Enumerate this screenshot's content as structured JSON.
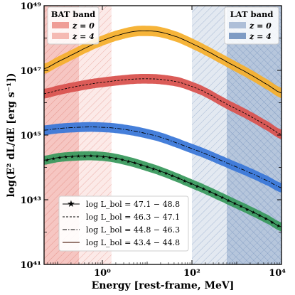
{
  "chart_data": {
    "type": "area",
    "xlabel": "Energy [rest-frame, MeV]",
    "ylabel": "log(E² dL/dE [erg s⁻¹])",
    "xscale": "log",
    "yscale": "log",
    "xlim": [
      0.05,
      10000
    ],
    "ylim": [
      1e+41,
      1e+49
    ],
    "x_ticks": [
      {
        "value": 1,
        "label": "10⁰"
      },
      {
        "value": 100,
        "label": "10²"
      },
      {
        "value": 10000,
        "label": "10⁴"
      }
    ],
    "y_ticks": [
      {
        "value": 1e+41,
        "label": "10⁴¹"
      },
      {
        "value": 1e+43,
        "label": "10⁴³"
      },
      {
        "value": 1e+45,
        "label": "10⁴⁵"
      },
      {
        "value": 1e+47,
        "label": "10⁴⁷"
      },
      {
        "value": 1e+49,
        "label": "10⁴⁹"
      }
    ],
    "x_samples": [
      0.05,
      0.1,
      0.2,
      0.5,
      1,
      2,
      5,
      10,
      20,
      50,
      100,
      200,
      500,
      1000,
      2000,
      5000,
      10000
    ],
    "series": [
      {
        "name": "log L_bol = 47.1 − 48.8",
        "color": "#f5b02e",
        "line_style": "solid",
        "y_log": [
          47.05,
          47.26,
          47.47,
          47.74,
          47.92,
          48.07,
          48.2,
          48.22,
          48.18,
          48.02,
          47.83,
          47.62,
          47.33,
          47.1,
          46.87,
          46.55,
          46.3
        ],
        "band_log": 0.16
      },
      {
        "name": "log L_bol = 46.3 − 47.1",
        "color": "#d9534f",
        "line_style": "dashed",
        "y_log": [
          46.28,
          46.38,
          46.47,
          46.57,
          46.63,
          46.68,
          46.73,
          46.74,
          46.72,
          46.64,
          46.5,
          46.32,
          46.02,
          45.8,
          45.58,
          45.27,
          45.02
        ],
        "band_log": 0.15
      },
      {
        "name": "log L_bol = 44.8 − 46.3",
        "color": "#3b78d8",
        "line_style": "dashdot",
        "y_log": [
          45.15,
          45.2,
          45.23,
          45.25,
          45.24,
          45.21,
          45.13,
          45.04,
          44.93,
          44.74,
          44.58,
          44.42,
          44.19,
          44.01,
          43.83,
          43.58,
          43.37
        ],
        "band_log": 0.15
      },
      {
        "name": "log L_bol = 43.4 − 44.8",
        "color": "#3a9a5e",
        "line_style": "solid",
        "markers": "star",
        "y_log": [
          44.22,
          44.3,
          44.34,
          44.36,
          44.34,
          44.28,
          44.15,
          44.02,
          43.88,
          43.67,
          43.49,
          43.31,
          43.06,
          42.86,
          42.66,
          42.39,
          42.16
        ],
        "band_log": 0.14
      }
    ],
    "bands": [
      {
        "group": "BAT band",
        "label": "z = 0",
        "x_range": [
          0.05,
          0.3
        ],
        "color": "#e8766e"
      },
      {
        "group": "BAT band",
        "label": "z = 4",
        "x_range": [
          0.05,
          1.6
        ],
        "color": "#f3aaa3"
      },
      {
        "group": "LAT band",
        "label": "z = 0",
        "x_range": [
          100,
          10000
        ],
        "color": "#aebfd8"
      },
      {
        "group": "LAT band",
        "label": "z = 4",
        "x_range": [
          600,
          10000
        ],
        "color": "#7f9cc4"
      }
    ],
    "legend_bat": {
      "title": "BAT band",
      "items": [
        "z = 0",
        "z = 4"
      ],
      "position": "top-left"
    },
    "legend_lat": {
      "title": "LAT band",
      "items": [
        "z = 0",
        "z = 4"
      ],
      "position": "top-right"
    },
    "legend_lines": {
      "position": "bottom-left",
      "items": [
        "log L_bol = 47.1 − 48.8",
        "log L_bol = 46.3 − 47.1",
        "log L_bol = 44.8 − 46.3",
        "log L_bol = 43.4 − 44.8"
      ]
    }
  }
}
